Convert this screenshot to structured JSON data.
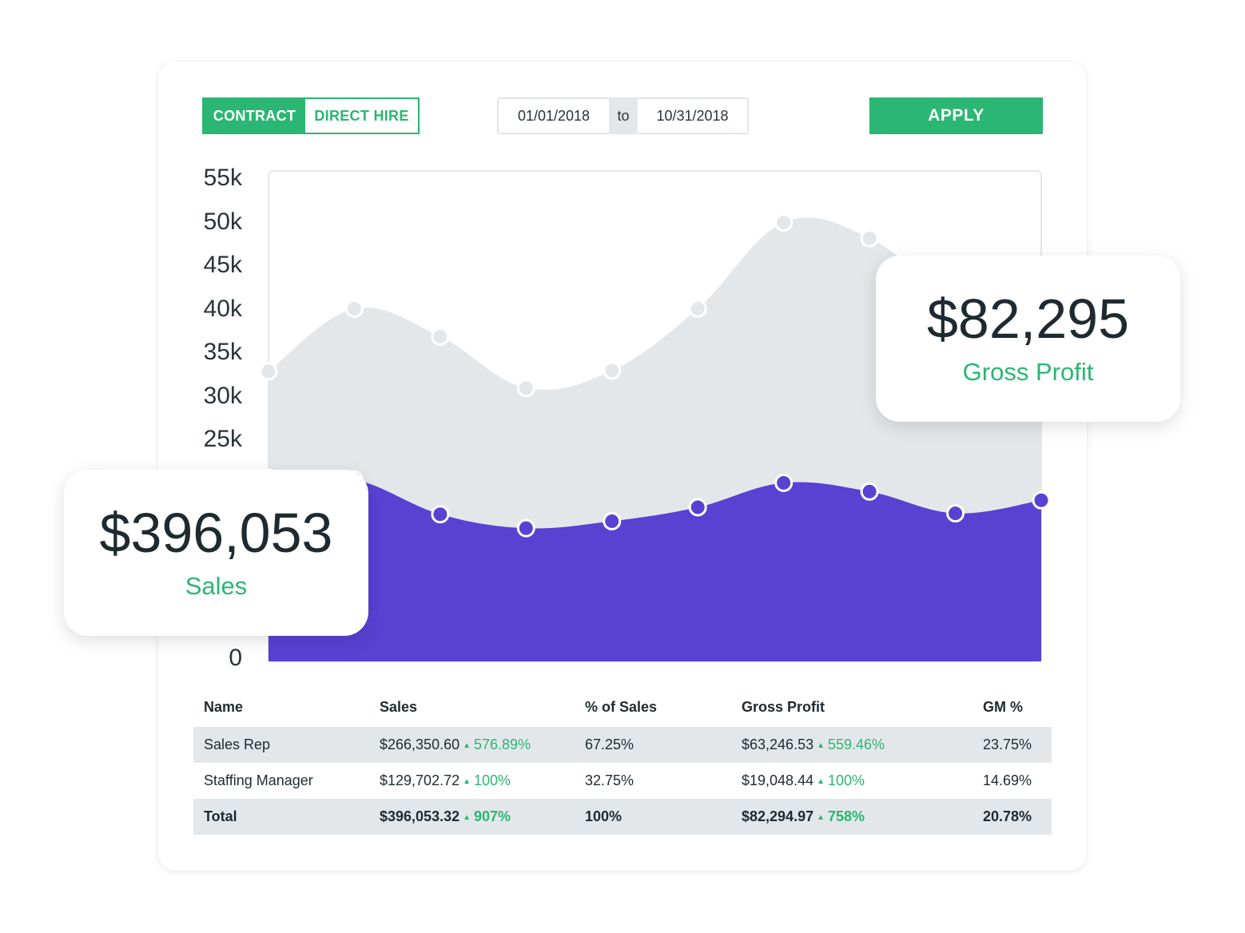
{
  "filters": {
    "toggle": {
      "active": "CONTRACT",
      "inactive": "DIRECT HIRE"
    },
    "date_from": "01/01/2018",
    "date_separator": "to",
    "date_to": "10/31/2018",
    "apply_label": "APPLY"
  },
  "summary_cards": {
    "sales": {
      "value": "$396,053",
      "label": "Sales"
    },
    "gross_profit": {
      "value": "$82,295",
      "label": "Gross Profit"
    }
  },
  "colors": {
    "accent": "#2bb673",
    "sales_fill": "#5941d2",
    "gp_fill": "#e4e7ea"
  },
  "chart_data": {
    "type": "area",
    "y_ticks": [
      "55k",
      "50k",
      "45k",
      "40k",
      "35k",
      "30k",
      "25k",
      "0"
    ],
    "ylim": [
      0,
      55000
    ],
    "x": [
      1,
      2,
      3,
      4,
      5,
      6,
      7,
      8,
      9,
      10
    ],
    "series": [
      {
        "values": [
          32800,
          40000,
          36800,
          30900,
          32900,
          40000,
          49900,
          48100,
          40500,
          33500
        ]
      },
      {
        "values": [
          20600,
          20400,
          16400,
          14800,
          15600,
          17200,
          20000,
          19000,
          16500,
          18000
        ]
      }
    ]
  },
  "table": {
    "headers": [
      "Name",
      "Sales",
      "% of Sales",
      "Gross Profit",
      "GM %"
    ],
    "rows": [
      {
        "name": "Sales Rep",
        "sales": "$266,350.60",
        "sales_change": "576.89%",
        "pct_sales": "67.25%",
        "gp": "$63,246.53",
        "gp_change": "559.46%",
        "gm": "23.75%"
      },
      {
        "name": "Staffing Manager",
        "sales": "$129,702.72",
        "sales_change": "100%",
        "pct_sales": "32.75%",
        "gp": "$19,048.44",
        "gp_change": "100%",
        "gm": "14.69%"
      }
    ],
    "total": {
      "name": "Total",
      "sales": "$396,053.32",
      "sales_change": "907%",
      "pct_sales": "100%",
      "gp": "$82,294.97",
      "gp_change": "758%",
      "gm": "20.78%"
    }
  }
}
